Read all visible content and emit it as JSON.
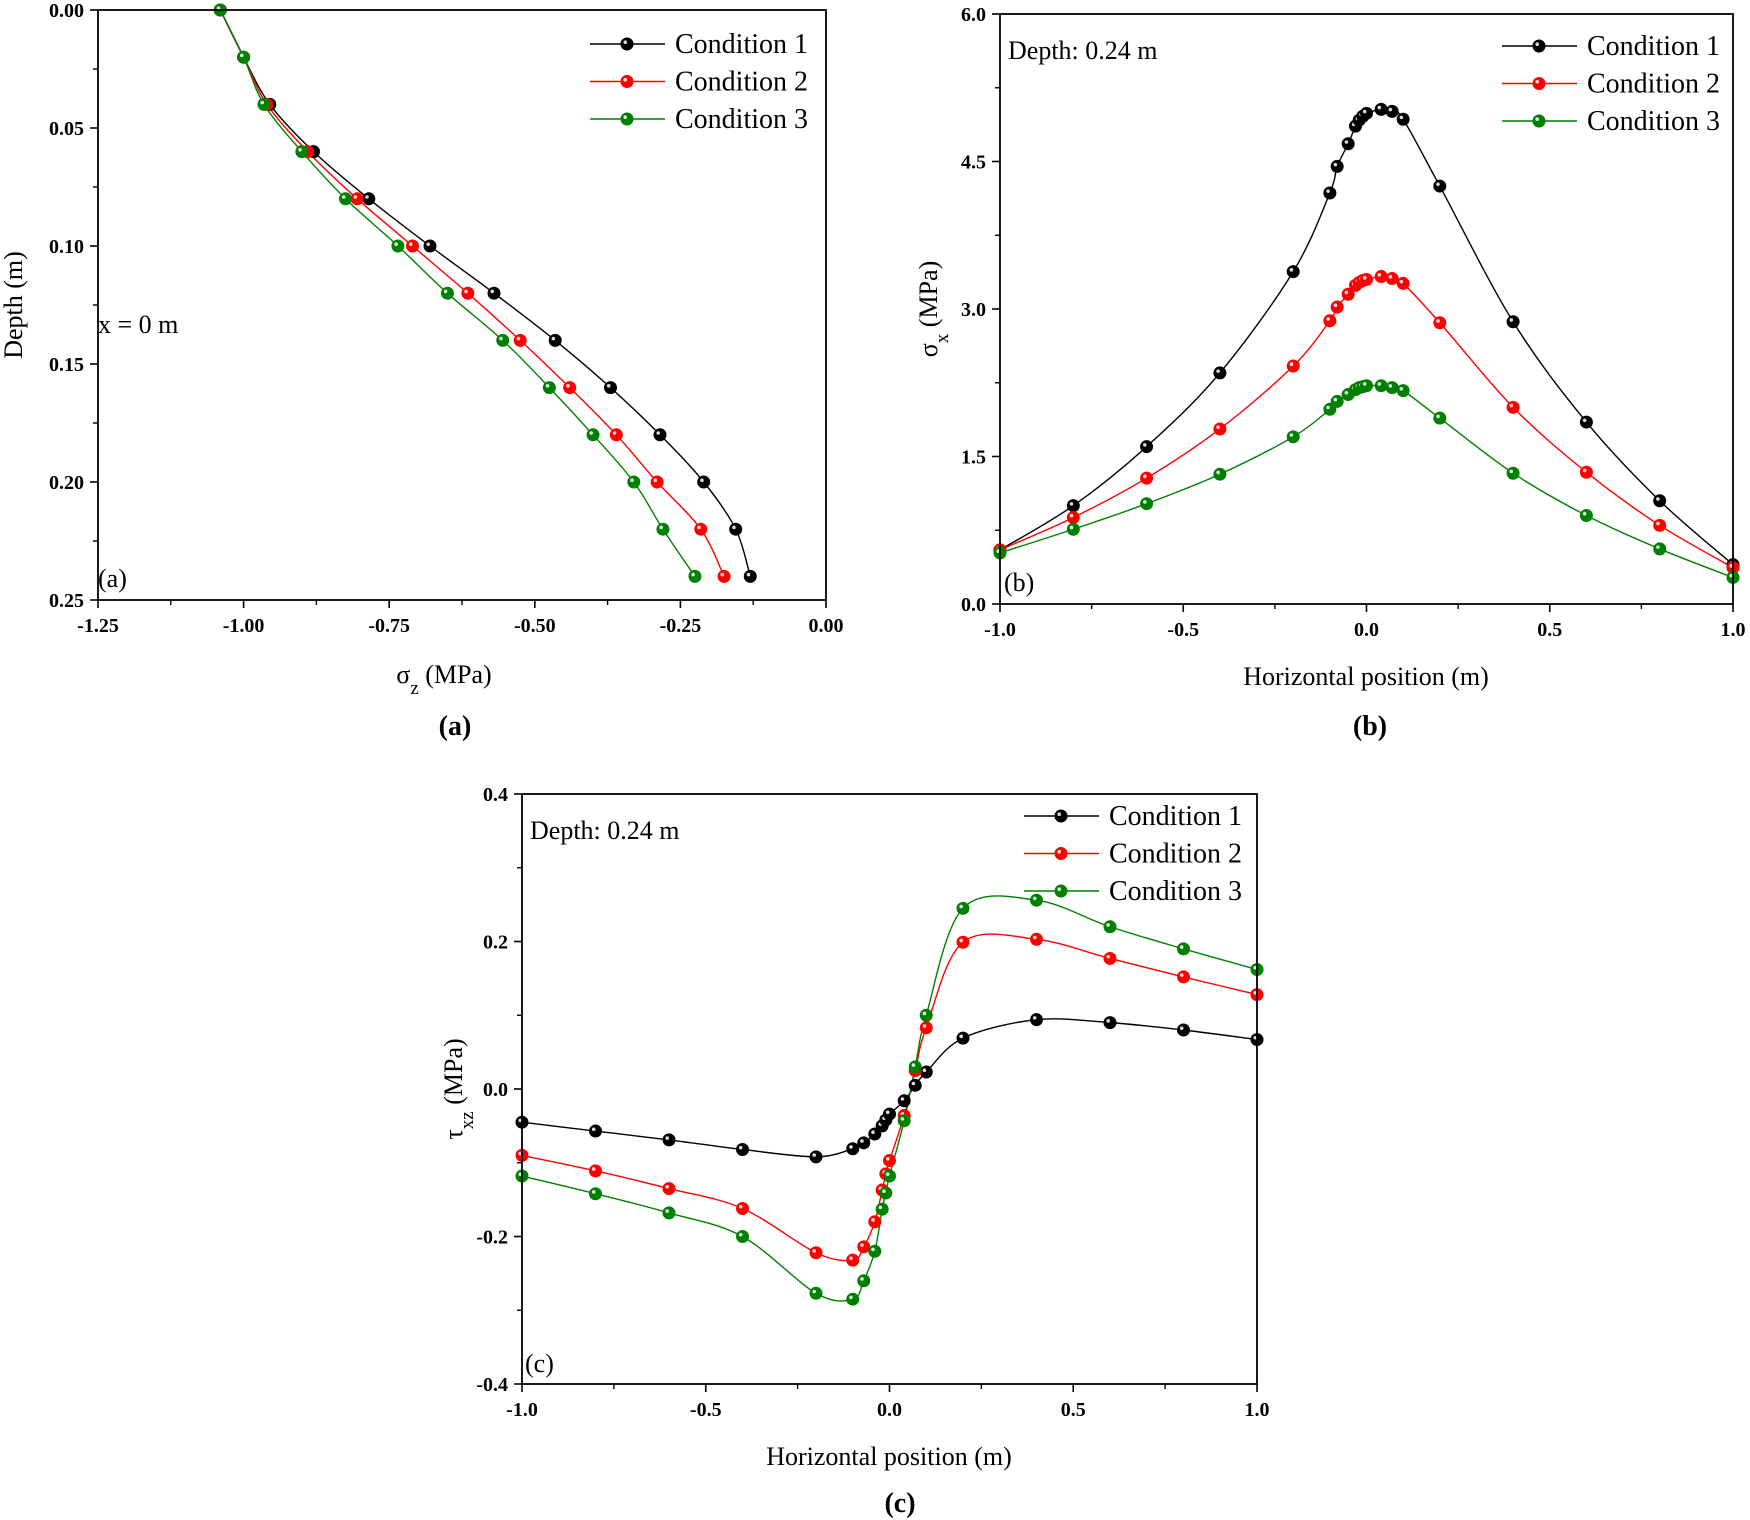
{
  "chart_data": [
    {
      "id": "a",
      "type": "line",
      "panel_label": "(a)",
      "caption": "(a)",
      "annotation": "x = 0 m",
      "xlabel_main": "σ",
      "xlabel_sub": "z",
      "xlabel_unit": " (MPa)",
      "ylabel": "Depth (m)",
      "xlim": [
        -1.25,
        0.0
      ],
      "ylim": [
        0.0,
        0.25
      ],
      "y_inverted": true,
      "xticks": [
        -1.25,
        -1.0,
        -0.75,
        -0.5,
        -0.25,
        0.0
      ],
      "xtick_labels": [
        "-1.25",
        "-1.00",
        "-0.75",
        "-0.50",
        "-0.25",
        "0.00"
      ],
      "yticks": [
        0.0,
        0.05,
        0.1,
        0.15,
        0.2,
        0.25
      ],
      "ytick_labels": [
        "0.00",
        "0.05",
        "0.10",
        "0.15",
        "0.20",
        "0.25"
      ],
      "legend_position": "top-right",
      "series": [
        {
          "name": "Condition 1",
          "color": "#000000",
          "x": [
            -1.04,
            -1.0,
            -0.955,
            -0.88,
            -0.785,
            -0.68,
            -0.57,
            -0.465,
            -0.37,
            -0.285,
            -0.21,
            -0.155,
            -0.13
          ],
          "y": [
            0.0,
            0.02,
            0.04,
            0.06,
            0.08,
            0.1,
            0.12,
            0.14,
            0.16,
            0.18,
            0.2,
            0.22,
            0.24
          ]
        },
        {
          "name": "Condition 2",
          "color": "#ff0000",
          "x": [
            -1.04,
            -1.0,
            -0.96,
            -0.89,
            -0.805,
            -0.71,
            -0.615,
            -0.525,
            -0.44,
            -0.36,
            -0.29,
            -0.215,
            -0.175
          ],
          "y": [
            0.0,
            0.02,
            0.04,
            0.06,
            0.08,
            0.1,
            0.12,
            0.14,
            0.16,
            0.18,
            0.2,
            0.22,
            0.24
          ]
        },
        {
          "name": "Condition 3",
          "color": "#008000",
          "x": [
            -1.04,
            -1.0,
            -0.965,
            -0.9,
            -0.825,
            -0.735,
            -0.65,
            -0.555,
            -0.475,
            -0.4,
            -0.33,
            -0.28,
            -0.225
          ],
          "y": [
            0.0,
            0.02,
            0.04,
            0.06,
            0.08,
            0.1,
            0.12,
            0.14,
            0.16,
            0.18,
            0.2,
            0.22,
            0.24
          ]
        }
      ]
    },
    {
      "id": "b",
      "type": "line",
      "panel_label": "(b)",
      "caption": "(b)",
      "annotation": "Depth: 0.24 m",
      "xlabel": "Horizontal position (m)",
      "ylabel_main": "σ",
      "ylabel_sub": "x",
      "ylabel_unit": " (MPa)",
      "xlim": [
        -1.0,
        1.0
      ],
      "ylim": [
        0.0,
        6.0
      ],
      "xticks": [
        -1.0,
        -0.5,
        0.0,
        0.5,
        1.0
      ],
      "xtick_labels": [
        "-1.0",
        "-0.5",
        "0.0",
        "0.5",
        "1.0"
      ],
      "yticks": [
        0.0,
        1.5,
        3.0,
        4.5,
        6.0
      ],
      "ytick_labels": [
        "0.0",
        "1.5",
        "3.0",
        "4.5",
        "6.0"
      ],
      "legend_position": "top-right",
      "series": [
        {
          "name": "Condition 1",
          "color": "#000000",
          "x": [
            -1.0,
            -0.8,
            -0.6,
            -0.4,
            -0.2,
            -0.1,
            -0.08,
            -0.05,
            -0.03,
            -0.02,
            -0.01,
            0.0,
            0.04,
            0.07,
            0.1,
            0.2,
            0.4,
            0.6,
            0.8,
            1.0
          ],
          "y": [
            0.55,
            1.0,
            1.6,
            2.35,
            3.38,
            4.18,
            4.45,
            4.68,
            4.86,
            4.92,
            4.96,
            4.99,
            5.03,
            5.01,
            4.93,
            4.25,
            2.87,
            1.85,
            1.05,
            0.4
          ]
        },
        {
          "name": "Condition 2",
          "color": "#ff0000",
          "x": [
            -1.0,
            -0.8,
            -0.6,
            -0.4,
            -0.2,
            -0.1,
            -0.08,
            -0.05,
            -0.03,
            -0.02,
            -0.01,
            0.0,
            0.04,
            0.07,
            0.1,
            0.2,
            0.4,
            0.6,
            0.8,
            1.0
          ],
          "y": [
            0.55,
            0.88,
            1.28,
            1.78,
            2.42,
            2.88,
            3.02,
            3.15,
            3.24,
            3.27,
            3.29,
            3.3,
            3.33,
            3.31,
            3.26,
            2.86,
            2.0,
            1.34,
            0.8,
            0.37
          ]
        },
        {
          "name": "Condition 3",
          "color": "#008000",
          "x": [
            -1.0,
            -0.8,
            -0.6,
            -0.4,
            -0.2,
            -0.1,
            -0.08,
            -0.05,
            -0.03,
            -0.02,
            -0.01,
            0.0,
            0.04,
            0.07,
            0.1,
            0.2,
            0.4,
            0.6,
            0.8,
            1.0
          ],
          "y": [
            0.52,
            0.76,
            1.02,
            1.32,
            1.7,
            1.98,
            2.06,
            2.13,
            2.18,
            2.2,
            2.21,
            2.22,
            2.22,
            2.2,
            2.17,
            1.89,
            1.33,
            0.9,
            0.56,
            0.27
          ]
        }
      ]
    },
    {
      "id": "c",
      "type": "line",
      "panel_label": "(c)",
      "caption": "(c)",
      "annotation": "Depth: 0.24 m",
      "xlabel": "Horizontal position (m)",
      "ylabel_main": "τ",
      "ylabel_sub": "xz",
      "ylabel_unit": " (MPa)",
      "xlim": [
        -1.0,
        1.0
      ],
      "ylim": [
        -0.4,
        0.4
      ],
      "xticks": [
        -1.0,
        -0.5,
        0.0,
        0.5,
        1.0
      ],
      "xtick_labels": [
        "-1.0",
        "-0.5",
        "0.0",
        "0.5",
        "1.0"
      ],
      "yticks": [
        -0.4,
        -0.2,
        0.0,
        0.2,
        0.4
      ],
      "ytick_labels": [
        "-0.4",
        "-0.2",
        "0.0",
        "0.2",
        "0.4"
      ],
      "legend_position": "top-right",
      "series": [
        {
          "name": "Condition 1",
          "color": "#000000",
          "x": [
            -1.0,
            -0.8,
            -0.6,
            -0.4,
            -0.2,
            -0.1,
            -0.07,
            -0.04,
            -0.02,
            -0.01,
            0.0,
            0.04,
            0.07,
            0.1,
            0.2,
            0.4,
            0.6,
            0.8,
            1.0
          ],
          "y": [
            -0.045,
            -0.057,
            -0.069,
            -0.082,
            -0.092,
            -0.081,
            -0.073,
            -0.061,
            -0.05,
            -0.042,
            -0.034,
            -0.016,
            0.005,
            0.023,
            0.069,
            0.094,
            0.09,
            0.08,
            0.067
          ]
        },
        {
          "name": "Condition 2",
          "color": "#ff0000",
          "x": [
            -1.0,
            -0.8,
            -0.6,
            -0.4,
            -0.2,
            -0.1,
            -0.07,
            -0.04,
            -0.02,
            -0.01,
            0.0,
            0.04,
            0.07,
            0.1,
            0.2,
            0.4,
            0.6,
            0.8,
            1.0
          ],
          "y": [
            -0.09,
            -0.111,
            -0.135,
            -0.162,
            -0.222,
            -0.232,
            -0.214,
            -0.18,
            -0.137,
            -0.115,
            -0.097,
            -0.036,
            0.025,
            0.083,
            0.199,
            0.203,
            0.177,
            0.152,
            0.128
          ]
        },
        {
          "name": "Condition 3",
          "color": "#008000",
          "x": [
            -1.0,
            -0.8,
            -0.6,
            -0.4,
            -0.2,
            -0.1,
            -0.07,
            -0.04,
            -0.02,
            -0.01,
            0.0,
            0.04,
            0.07,
            0.1,
            0.2,
            0.4,
            0.6,
            0.8,
            1.0
          ],
          "y": [
            -0.118,
            -0.142,
            -0.168,
            -0.2,
            -0.277,
            -0.285,
            -0.26,
            -0.22,
            -0.163,
            -0.141,
            -0.118,
            -0.043,
            0.03,
            0.1,
            0.245,
            0.256,
            0.22,
            0.19,
            0.162
          ]
        }
      ]
    }
  ]
}
